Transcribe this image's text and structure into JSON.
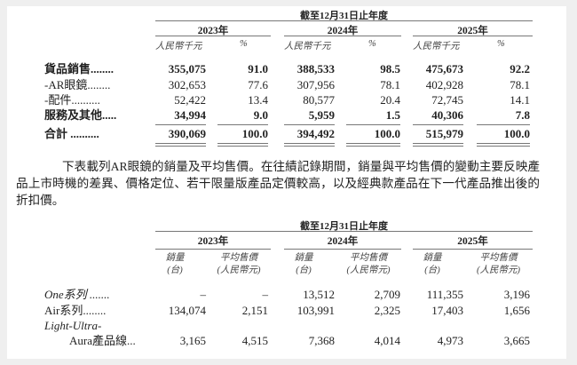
{
  "revenue_table": {
    "period_header": "截至12月31日止年度",
    "years": [
      "2023年",
      "2024年",
      "2025年"
    ],
    "subheaders": [
      "人民幣千元",
      "%"
    ],
    "rows": [
      {
        "label": "貨品銷售........",
        "bold": true,
        "values": [
          "355,075",
          "91.0",
          "388,533",
          "98.5",
          "475,673",
          "92.2"
        ]
      },
      {
        "label": "-AR眼鏡........",
        "bold": false,
        "values": [
          "302,653",
          "77.6",
          "307,956",
          "78.1",
          "402,928",
          "78.1"
        ]
      },
      {
        "label": "-配件..........",
        "bold": false,
        "values": [
          "52,422",
          "13.4",
          "80,577",
          "20.4",
          "72,745",
          "14.1"
        ]
      },
      {
        "label": "服務及其他.....",
        "bold": true,
        "values": [
          "34,994",
          "9.0",
          "5,959",
          "1.5",
          "40,306",
          "7.8"
        ]
      },
      {
        "label": "合計 ..........",
        "bold": true,
        "values": [
          "390,069",
          "100.0",
          "394,492",
          "100.0",
          "515,979",
          "100.0"
        ]
      }
    ]
  },
  "paragraph": "下表載列AR眼鏡的銷量及平均售價。在往績記錄期間，銷量與平均售價的變動主要反映產品上市時機的差異、價格定位、若干限量版產品定價較高，以及經典款產品在下一代產品推出後的折扣價。",
  "sales_table": {
    "period_header": "截至12月31日止年度",
    "years": [
      "2023年",
      "2024年",
      "2025年"
    ],
    "subheaders": [
      [
        "銷量",
        "(台)"
      ],
      [
        "平均售價",
        "(人民幣元)"
      ]
    ],
    "rows": [
      {
        "label": "One系列 .......",
        "values": [
          "–",
          "–",
          "13,512",
          "2,709",
          "111,355",
          "3,196"
        ]
      },
      {
        "label": "Air系列........",
        "values": [
          "134,074",
          "2,151",
          "103,991",
          "2,325",
          "17,403",
          "1,656"
        ]
      },
      {
        "label": "Light-Ultra-",
        "values": []
      },
      {
        "label": "Aura產品線...",
        "values": [
          "3,165",
          "4,515",
          "7,368",
          "4,014",
          "4,973",
          "3,665"
        ]
      }
    ]
  }
}
